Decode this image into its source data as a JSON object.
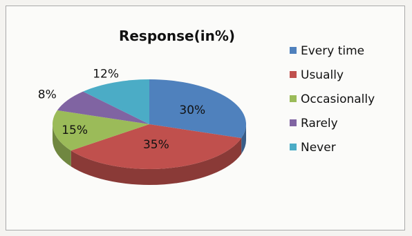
{
  "chart_data": {
    "type": "pie",
    "title": "Response(in%)",
    "categories": [
      "Every time",
      "Usually",
      "Occasionally",
      "Rarely",
      "Never"
    ],
    "values": [
      30,
      35,
      15,
      8,
      12
    ],
    "labels": [
      "30%",
      "35%",
      "15%",
      "8%",
      "12%"
    ],
    "colors": [
      "#4f81bd",
      "#c0504d",
      "#9bbb59",
      "#8064a2",
      "#4bacc6"
    ],
    "style": "3d",
    "legend_position": "right"
  }
}
